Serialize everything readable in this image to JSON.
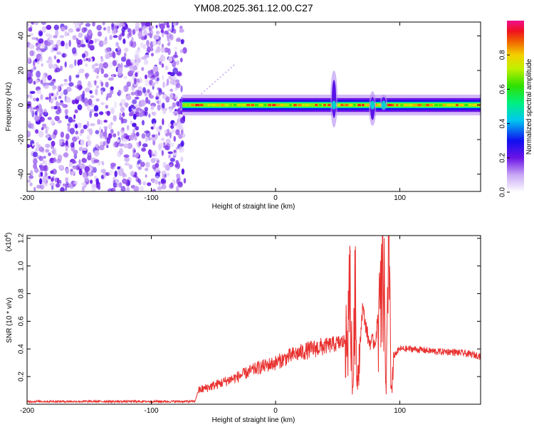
{
  "title": "YM08.2025.361.12.00.C27",
  "chart_data": [
    {
      "type": "heatmap",
      "xlabel": "Height of straight line (km)",
      "ylabel": "Frequency (Hz)",
      "xlim": [
        -200,
        165
      ],
      "ylim": [
        -50,
        48
      ],
      "xticks": [
        "-200",
        "-100",
        "0",
        "100"
      ],
      "yticks": [
        "-40",
        "-20",
        "0",
        "20",
        "40"
      ],
      "noise_region_x": [
        -200,
        -73
      ],
      "signal_band_x": [
        -75,
        165
      ],
      "signal_band_center_hz": 0,
      "signal_band_halfwidth_hz": 4,
      "disturbances": [
        {
          "x": 47,
          "freq_range": [
            -13,
            20
          ]
        },
        {
          "x": 78,
          "freq_range": [
            -12,
            8
          ]
        },
        {
          "x": 87,
          "freq_range": [
            -3,
            6
          ]
        }
      ],
      "colorbar": {
        "label": "Normalized spectral amplitude",
        "range": [
          0,
          1
        ],
        "ticks": [
          "0.0",
          "0.2",
          "0.4",
          "0.6",
          "0.8"
        ]
      }
    },
    {
      "type": "line",
      "xlabel": "Height of straight line (km)",
      "ylabel": "SNR (10 * v/v)",
      "y_multiplier": "(x10",
      "y_multiplier_exp": "4",
      "xlim": [
        -200,
        165
      ],
      "ylim": [
        0,
        1.22
      ],
      "xticks": [
        "-200",
        "-100",
        "0",
        "100"
      ],
      "yticks": [
        "0.2",
        "0.4",
        "0.6",
        "0.8",
        "1.0",
        "1.2"
      ],
      "color": "#e8312f",
      "series": [
        {
          "x": [
            -200,
            -150,
            -100,
            -80,
            -65,
            -62,
            -55,
            -45,
            -30,
            -15,
            0,
            15,
            30,
            40,
            50,
            55,
            58,
            60,
            62,
            64,
            66,
            70,
            75,
            80,
            84,
            87,
            89,
            91,
            93,
            95,
            100,
            110,
            120,
            130,
            140,
            150,
            165
          ],
          "y": [
            0.02,
            0.02,
            0.02,
            0.02,
            0.02,
            0.1,
            0.12,
            0.15,
            0.2,
            0.26,
            0.3,
            0.36,
            0.4,
            0.42,
            0.44,
            0.45,
            0.5,
            0.95,
            0.1,
            0.85,
            0.2,
            0.7,
            0.45,
            0.45,
            0.7,
            1.05,
            0.1,
            1.2,
            0.1,
            0.35,
            0.4,
            0.4,
            0.39,
            0.38,
            0.38,
            0.37,
            0.35
          ]
        }
      ]
    }
  ]
}
